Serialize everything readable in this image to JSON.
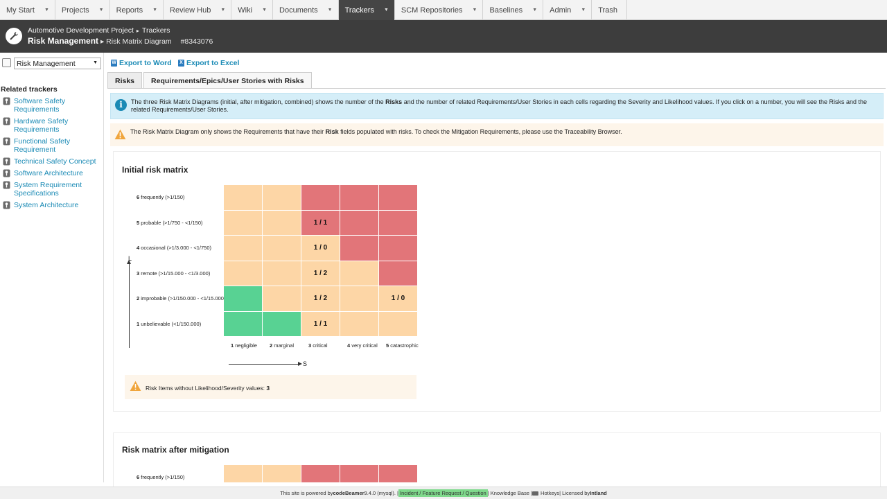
{
  "nav": {
    "tabs": [
      {
        "label": "My Start",
        "caret": true
      },
      {
        "label": "Projects",
        "caret": true
      },
      {
        "label": "Reports",
        "caret": true
      },
      {
        "label": "Review Hub",
        "caret": true
      },
      {
        "label": "Wiki",
        "caret": true
      },
      {
        "label": "Documents",
        "caret": true
      },
      {
        "label": "Trackers",
        "caret": true,
        "active": true
      },
      {
        "label": "SCM Repositories",
        "caret": true
      },
      {
        "label": "Baselines",
        "caret": true
      },
      {
        "label": "Admin",
        "caret": true
      },
      {
        "label": "Trash",
        "caret": false
      }
    ],
    "caret_glyph": "▼"
  },
  "header": {
    "project": "Automotive Development Project",
    "crumb_sep": "▸",
    "section": "Trackers",
    "title": "Risk Management",
    "subtitle": "Risk Matrix Diagram",
    "item_id": "#8343076"
  },
  "sidebar": {
    "tracker_select": "Risk Management",
    "related_title": "Related trackers",
    "related": [
      "Software Safety Requirements",
      "Hardware Safety Requirements",
      "Functional Safety Requirement",
      "Technical Safety Concept",
      "Software Architecture",
      "System Requirement Specifications",
      "System Architecture"
    ]
  },
  "toolbar": {
    "export_word": "Export to Word",
    "export_excel": "Export to Excel"
  },
  "tabs": {
    "risks": "Risks",
    "requirements": "Requirements/Epics/User Stories with Risks"
  },
  "messages": {
    "info_a": "The three Risk Matrix Diagrams (initial, after mitigation, combined) shows the number of the ",
    "info_b": "Risks",
    "info_c": " and the number of related Requirements/User Stories in each cells regarding the Severity and Likelihood values. If you click on a number, you will see the Risks and the related Requirements/User Stories.",
    "warn_a": "The Risk Matrix Diagram only shows the Requirements that have their ",
    "warn_b": "Risk",
    "warn_c": " fields populated with risks. To check the Mitigation Requirements, please use the Traceability Browser."
  },
  "matrix": {
    "title": "Initial risk matrix",
    "likelihood": [
      {
        "num": "6",
        "label": " frequently (>1/150)"
      },
      {
        "num": "5",
        "label": " probable (>1/750 - <1/150)"
      },
      {
        "num": "4",
        "label": " occasional (>1/3.000 - <1/750)"
      },
      {
        "num": "3",
        "label": " remote (>1/15.000 - <1/3.000)"
      },
      {
        "num": "2",
        "label": " improbable (>1/150.000 - <1/15.000)"
      },
      {
        "num": "1",
        "label": " unbelievable (<1/150.000)"
      }
    ],
    "severity": [
      {
        "num": "1",
        "label": " negligible"
      },
      {
        "num": "2",
        "label": " marginal"
      },
      {
        "num": "3",
        "label": " critical"
      },
      {
        "num": "4",
        "label": " very critical"
      },
      {
        "num": "5",
        "label": " catastrophic"
      }
    ],
    "rows": [
      {
        "colors": [
          "o",
          "o",
          "r",
          "r",
          "r"
        ],
        "values": [
          "",
          "",
          "",
          "",
          ""
        ]
      },
      {
        "colors": [
          "o",
          "o",
          "r",
          "r",
          "r"
        ],
        "values": [
          "",
          "",
          "1 / 1",
          "",
          ""
        ]
      },
      {
        "colors": [
          "o",
          "o",
          "o",
          "r",
          "r"
        ],
        "values": [
          "",
          "",
          "1 / 0",
          "",
          ""
        ]
      },
      {
        "colors": [
          "o",
          "o",
          "o",
          "o",
          "r"
        ],
        "values": [
          "",
          "",
          "1 / 2",
          "",
          ""
        ]
      },
      {
        "colors": [
          "g",
          "o",
          "o",
          "o",
          "o"
        ],
        "values": [
          "",
          "",
          "1 / 2",
          "",
          "1 / 0"
        ]
      },
      {
        "colors": [
          "g",
          "g",
          "o",
          "o",
          "o"
        ],
        "values": [
          "",
          "",
          "1 / 1",
          "",
          ""
        ]
      }
    ],
    "axis_l": "L",
    "axis_s": "S",
    "no_values_label": "Risk Items without Likelihood/Severity values: ",
    "no_values_count": "3"
  },
  "matrix2": {
    "title": "Risk matrix after mitigation",
    "first_row": {
      "num": "6",
      "label": " frequently (>1/150)"
    }
  },
  "footer": {
    "powered": "This site is powered by ",
    "product": "codeBeamer",
    "version": " 9.4.0 (mysql). | ",
    "incident": "Incident / Feature Request / Question",
    "kb": " | Knowledge Base | ",
    "hotkeys": "Hotkeys",
    "licensed": " | Licensed by ",
    "vendor": "Intland"
  },
  "colors": {
    "orange": "#fdd6a6",
    "red": "#e27579",
    "green": "#58d293",
    "link": "#1a8ab5"
  }
}
